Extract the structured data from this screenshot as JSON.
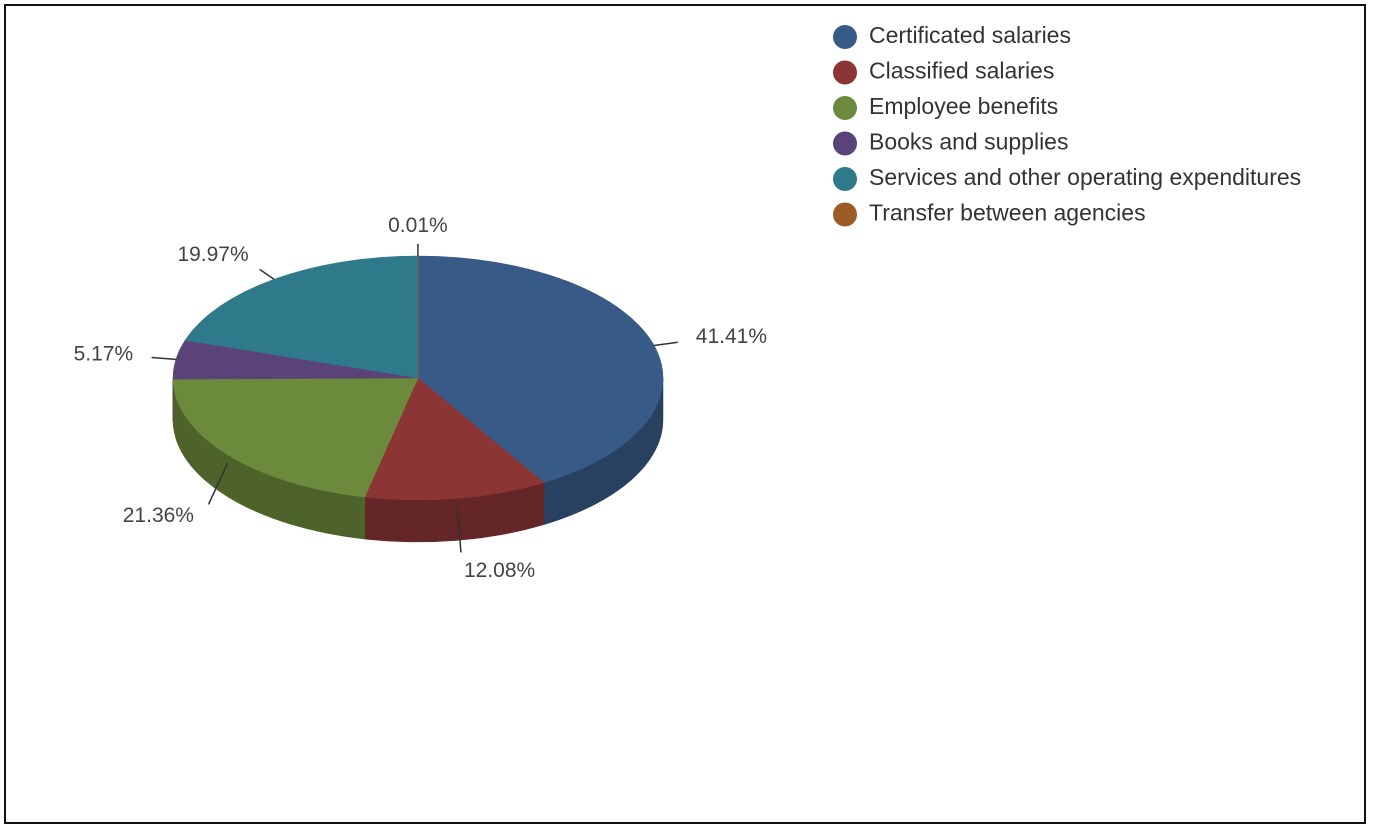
{
  "chart_data": {
    "type": "pie",
    "categories": [
      "Certificated salaries",
      "Classified salaries",
      "Employee benefits",
      "Books and supplies",
      "Services and other operating expenditures",
      "Transfer between agencies"
    ],
    "values": [
      41.41,
      12.08,
      21.36,
      5.17,
      19.97,
      0.01
    ],
    "value_labels": [
      "41.41%",
      "12.08%",
      "21.36%",
      "5.17%",
      "19.97%",
      "0.01%"
    ],
    "colors": [
      "#375a87",
      "#8b3535",
      "#6b8a3b",
      "#5a4378",
      "#2f7a8a",
      "#9c5a24"
    ]
  }
}
